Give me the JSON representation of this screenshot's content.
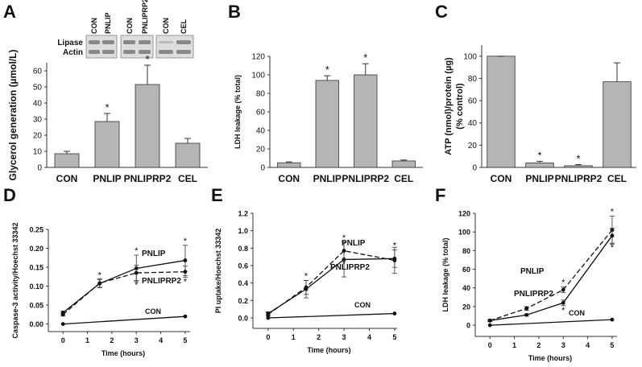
{
  "chart_data": [
    {
      "type": "bar",
      "panel": "A",
      "ylabel": "Glycerol  generation (µmol/L)",
      "categories": [
        "CON",
        "PNLIP",
        "PNLIPRP2",
        "CEL"
      ],
      "values": [
        8.5,
        28.5,
        51.5,
        15
      ],
      "errors": [
        1.5,
        5,
        12,
        3
      ],
      "significance": [
        null,
        "*",
        "*",
        null
      ],
      "color": "#b5b5b5",
      "ylim": [
        0,
        65
      ],
      "yticks": [
        0,
        10,
        20,
        30,
        40,
        50,
        60
      ],
      "grid": false,
      "blot": {
        "rows": [
          "Lipase",
          "Actin"
        ],
        "lanes": [
          "CON",
          "PNLIP",
          "CON",
          "PNLIPRP2",
          "CON",
          "CEL"
        ]
      }
    },
    {
      "type": "bar",
      "panel": "B",
      "ylabel": "LDH leakage (% total)",
      "categories": [
        "CON",
        "PNLIP",
        "PNLIPRP2",
        "CEL"
      ],
      "values": [
        5,
        94,
        100,
        7
      ],
      "errors": [
        1,
        5,
        12,
        1
      ],
      "significance": [
        null,
        "*",
        "*",
        null
      ],
      "color": "#b5b5b5",
      "ylim": [
        0,
        120
      ],
      "yticks": [
        0,
        20,
        40,
        60,
        80,
        100,
        120
      ],
      "grid": false
    },
    {
      "type": "bar",
      "panel": "C",
      "ylabel": [
        "ATP (nmol)/protein (µg)",
        "(% control)"
      ],
      "categories": [
        "CON",
        "PNLIP",
        "PNLIPRP2",
        "CEL"
      ],
      "values": [
        100,
        4,
        1.5,
        77
      ],
      "errors": [
        0,
        1.5,
        1,
        17
      ],
      "significance": [
        null,
        "*",
        "*",
        null
      ],
      "color": "#b5b5b5",
      "ylim": [
        0,
        110
      ],
      "yticks": [
        0,
        20,
        40,
        60,
        80,
        100
      ],
      "grid": false
    },
    {
      "type": "line",
      "panel": "D",
      "ylabel": "Caspase-3 activity/Hoechst  33342",
      "xlabel": "Time (hours)",
      "x": [
        0,
        1.5,
        3,
        5
      ],
      "xlim": [
        -0.6,
        5.2
      ],
      "xticks": [
        0,
        1,
        2,
        3,
        4,
        5
      ],
      "ylim": [
        -0.02,
        0.25
      ],
      "yticks": [
        {
          "value": 0,
          "label": "0.00"
        },
        0.05,
        {
          "value": 0.1,
          "label": "0.10"
        },
        0.15,
        {
          "value": 0.2,
          "label": "0.20"
        },
        0.25
      ],
      "grid": false,
      "series": [
        {
          "name": "PNLIP",
          "color": "#111111",
          "line_style": "solid",
          "values": [
            0.03,
            0.107,
            0.147,
            0.168
          ],
          "errors": [
            0.004,
            0.01,
            0.035,
            0.04
          ],
          "significance": [
            null,
            "*",
            "*",
            "*"
          ]
        },
        {
          "name": "PNLIPRP2",
          "color": "#111111",
          "line_style": "dashed",
          "values": [
            0.025,
            0.108,
            0.135,
            0.138
          ],
          "errors": [
            0.004,
            0.012,
            0.02,
            0.015
          ],
          "significance": [
            null,
            null,
            "*",
            "*"
          ]
        },
        {
          "name": "CON",
          "color": "#111111",
          "line_style": "solid",
          "x": [
            0,
            5
          ],
          "values": [
            0,
            0.02
          ]
        }
      ]
    },
    {
      "type": "line",
      "panel": "E",
      "ylabel": "PI uptake/Hoechst  33342",
      "xlabel": "Time (hours)",
      "x": [
        0,
        1.5,
        3,
        5
      ],
      "xlim": [
        -0.6,
        5.1
      ],
      "xticks": [
        0,
        1,
        2,
        3,
        4,
        5
      ],
      "ylim": [
        -0.12,
        1.2
      ],
      "yticks": [
        {
          "value": 0,
          "label": "0.0"
        },
        0.2,
        0.4,
        0.6,
        0.8,
        {
          "value": 1,
          "label": "1.0"
        },
        1.2
      ],
      "grid": false,
      "series": [
        {
          "name": "PNLIP",
          "color": "#111111",
          "line_style": "solid",
          "values": [
            0.05,
            0.33,
            0.67,
            0.68
          ],
          "errors": [
            0.02,
            0.1,
            0.2,
            0.1
          ],
          "significance": [
            null,
            "*",
            "*",
            "*"
          ]
        },
        {
          "name": "PNLIPRP2",
          "color": "#111111",
          "line_style": "dashed",
          "values": [
            0.04,
            0.35,
            0.77,
            0.66
          ],
          "errors": [
            0.02,
            0.08,
            0.1,
            0.15
          ],
          "significance": [
            null,
            null,
            "*",
            null
          ]
        },
        {
          "name": "CON",
          "color": "#111111",
          "line_style": "solid",
          "x": [
            0,
            5
          ],
          "values": [
            0,
            0.05
          ]
        }
      ]
    },
    {
      "type": "line",
      "panel": "F",
      "ylabel": "LDH leakage  (% total)",
      "xlabel": "Time (hours)",
      "x": [
        0,
        1.5,
        3,
        5
      ],
      "xlim": [
        -0.6,
        5.2
      ],
      "xticks": [
        0,
        1,
        2,
        3,
        4,
        5
      ],
      "ylim": [
        -12,
        120
      ],
      "yticks": [
        0,
        20,
        40,
        60,
        80,
        100,
        120
      ],
      "grid": false,
      "series": [
        {
          "name": "PNLIP",
          "color": "#111111",
          "line_style": "dashed",
          "values": [
            5,
            18,
            38,
            102
          ],
          "errors": [
            1,
            2,
            3,
            15
          ],
          "significance": [
            null,
            null,
            "*",
            "*"
          ]
        },
        {
          "name": "PNLIPRP2",
          "color": "#111111",
          "line_style": "solid",
          "values": [
            5,
            11,
            24,
            96
          ],
          "errors": [
            1,
            1,
            3,
            8
          ],
          "significance": [
            null,
            null,
            "*",
            "*"
          ]
        },
        {
          "name": "CON",
          "color": "#111111",
          "line_style": "solid",
          "x": [
            0,
            5
          ],
          "values": [
            0,
            6
          ]
        }
      ]
    }
  ]
}
